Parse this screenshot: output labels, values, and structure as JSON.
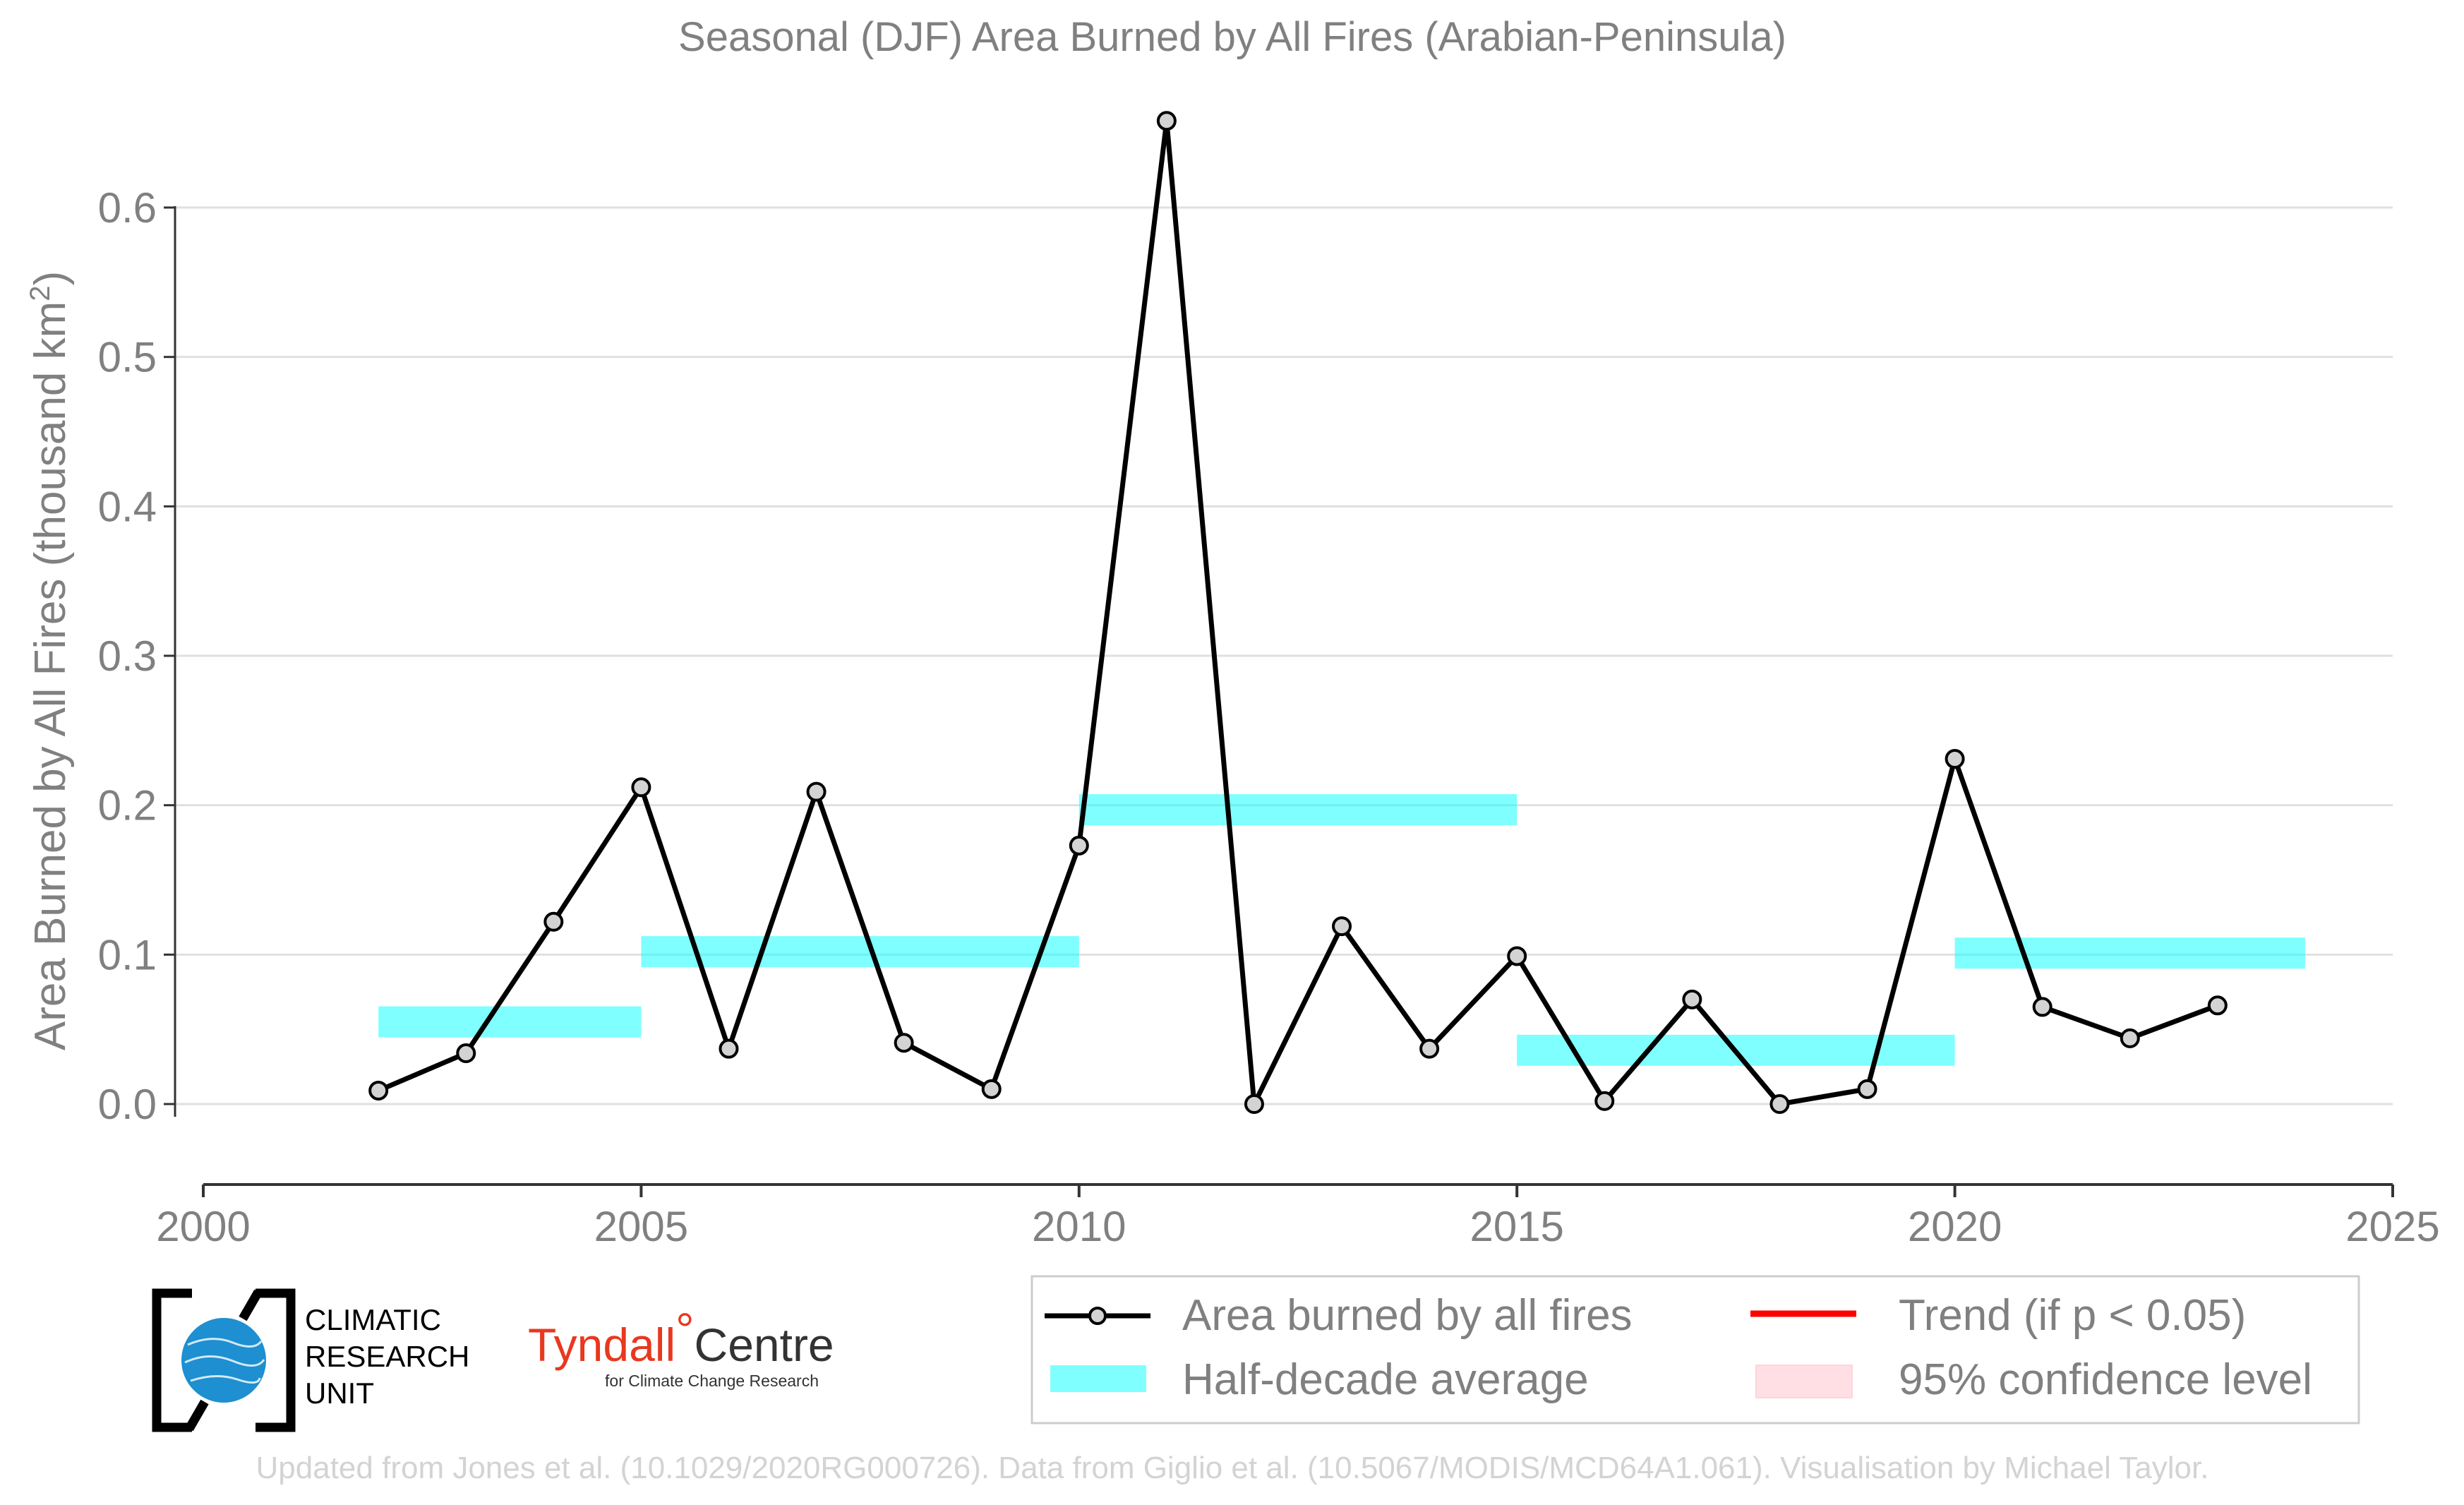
{
  "chart_data": {
    "type": "line",
    "title": "Seasonal (DJF) Area Burned by All Fires (Arabian-Peninsula)",
    "ylabel": "Area Burned by All Fires (thousand km²)",
    "xlabel": "",
    "xlim": [
      2000,
      2025
    ],
    "ylim": [
      -0.05,
      0.68
    ],
    "x_ticks": [
      2000,
      2005,
      2010,
      2015,
      2020,
      2025
    ],
    "x_tick_labels": [
      "2000",
      "2005",
      "2010",
      "2015",
      "2020",
      "2025"
    ],
    "y_ticks": [
      0.0,
      0.1,
      0.2,
      0.3,
      0.4,
      0.5,
      0.6
    ],
    "y_tick_labels": [
      "0.0",
      "0.1",
      "0.2",
      "0.3",
      "0.4",
      "0.5",
      "0.6"
    ],
    "grid": true,
    "series": [
      {
        "name": "Area burned by all fires",
        "color": "#000000",
        "marker_fill": "#d3d3d3",
        "x": [
          2002,
          2003,
          2004,
          2005,
          2006,
          2007,
          2008,
          2009,
          2010,
          2011,
          2012,
          2013,
          2014,
          2015,
          2016,
          2017,
          2018,
          2019,
          2020,
          2021,
          2022,
          2023
        ],
        "values": [
          0.009,
          0.034,
          0.122,
          0.212,
          0.037,
          0.209,
          0.041,
          0.01,
          0.173,
          0.658,
          0.0,
          0.119,
          0.037,
          0.099,
          0.002,
          0.07,
          0.0,
          0.01,
          0.231,
          0.065,
          0.044,
          0.066
        ]
      }
    ],
    "half_decade_average": {
      "name": "Half-decade average",
      "color": "#00ffff",
      "segments": [
        {
          "x0": 2002,
          "x1": 2005,
          "value": 0.055
        },
        {
          "x0": 2005,
          "x1": 2010,
          "value": 0.102
        },
        {
          "x0": 2010,
          "x1": 2015,
          "value": 0.197
        },
        {
          "x0": 2015,
          "x1": 2020,
          "value": 0.036
        },
        {
          "x0": 2020,
          "x1": 2024,
          "value": 0.101
        }
      ]
    },
    "legend": {
      "placement": "bottom-right",
      "items": [
        {
          "label": "Area burned by all fires",
          "kind": "line-marker",
          "color": "#000000"
        },
        {
          "label": "Trend (if p < 0.05)",
          "kind": "line",
          "color": "#ff0000"
        },
        {
          "label": "Half-decade average",
          "kind": "band",
          "color": "#00ffff"
        },
        {
          "label": "95% confidence level",
          "kind": "band",
          "color": "#ffc0c8"
        }
      ]
    }
  },
  "logos": {
    "cru": [
      "CLIMATIC",
      "RESEARCH",
      "UNIT"
    ],
    "tyndall_name": "Tyndall",
    "tyndall_degree": "°",
    "tyndall_centre": "Centre",
    "tyndall_sub": "for Climate Change Research"
  },
  "credit": "Updated from Jones et al. (10.1029/2020RG000726). Data from Giglio et al. (10.5067/MODIS/MCD64A1.061). Visualisation by Michael Taylor."
}
